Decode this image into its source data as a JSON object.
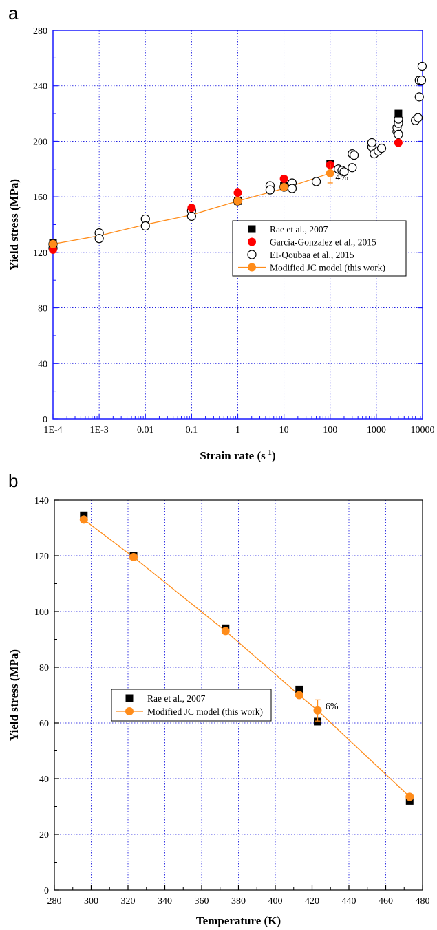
{
  "chart_data": [
    {
      "panel_label": "a",
      "type": "scatter",
      "xlabel": "Strain rate (s",
      "xlabel_sup": "-1",
      "xlabel_end": ")",
      "ylabel": "Yield stress (MPa)",
      "xscale": "log",
      "xlim": [
        0.0001,
        10000
      ],
      "ylim": [
        0,
        280
      ],
      "xticks": [
        {
          "v": 0.0001,
          "label": "1E-4"
        },
        {
          "v": 0.001,
          "label": "1E-3"
        },
        {
          "v": 0.01,
          "label": "0.01"
        },
        {
          "v": 0.1,
          "label": "0.1"
        },
        {
          "v": 1,
          "label": "1"
        },
        {
          "v": 10,
          "label": "10"
        },
        {
          "v": 100,
          "label": "100"
        },
        {
          "v": 1000,
          "label": "1000"
        },
        {
          "v": 10000,
          "label": "10000"
        }
      ],
      "yticks": [
        {
          "v": 0,
          "label": "0"
        },
        {
          "v": 40,
          "label": "40"
        },
        {
          "v": 80,
          "label": "80"
        },
        {
          "v": 120,
          "label": "120"
        },
        {
          "v": 160,
          "label": "160"
        },
        {
          "v": 200,
          "label": "200"
        },
        {
          "v": 240,
          "label": "240"
        },
        {
          "v": 280,
          "label": "280"
        }
      ],
      "grid": true,
      "legend_position": "center-right",
      "series": [
        {
          "name": "Rae et al., 2007",
          "marker": "square",
          "color": "#000000",
          "points": [
            [
              0.0001,
              127
            ],
            [
              1,
              157
            ],
            [
              10,
              168
            ],
            [
              100,
              184
            ],
            [
              3000,
              220
            ]
          ]
        },
        {
          "name": "Garcia-Gonzalez et al., 2015",
          "marker": "circle",
          "color": "#ff0000",
          "points": [
            [
              0.0001,
              122
            ],
            [
              0.1,
              152
            ],
            [
              1,
              163
            ],
            [
              10,
              173
            ],
            [
              100,
              183
            ],
            [
              3000,
              199
            ]
          ]
        },
        {
          "name": "EI-Qoubaa et al., 2015",
          "marker": "open-circle",
          "color": "#000000",
          "points": [
            [
              0.0001,
              126
            ],
            [
              0.0001,
              123
            ],
            [
              0.001,
              134
            ],
            [
              0.001,
              130
            ],
            [
              0.01,
              144
            ],
            [
              0.01,
              139
            ],
            [
              0.1,
              150
            ],
            [
              0.1,
              146
            ],
            [
              1,
              157
            ],
            [
              5,
              168
            ],
            [
              5,
              165
            ],
            [
              10,
              167
            ],
            [
              15,
              170
            ],
            [
              15,
              166
            ],
            [
              50,
              171
            ],
            [
              150,
              180
            ],
            [
              180,
              179
            ],
            [
              200,
              178
            ],
            [
              300,
              181
            ],
            [
              300,
              191
            ],
            [
              330,
              190
            ],
            [
              800,
              196
            ],
            [
              800,
              199
            ],
            [
              900,
              191
            ],
            [
              1100,
              193
            ],
            [
              1300,
              195
            ],
            [
              2800,
              207
            ],
            [
              2800,
              210
            ],
            [
              3000,
              213
            ],
            [
              3000,
              216
            ],
            [
              3000,
              205
            ],
            [
              7000,
              215
            ],
            [
              8000,
              217
            ],
            [
              8500,
              244
            ],
            [
              8500,
              232
            ],
            [
              9500,
              244
            ],
            [
              9800,
              254
            ]
          ]
        },
        {
          "name": "Modified JC model (this work)",
          "marker": "circle-line",
          "color": "#ff8c1a",
          "points": [
            [
              0.0001,
              126
            ],
            [
              1,
              157
            ],
            [
              10,
              167
            ],
            [
              100,
              177
            ]
          ],
          "line": [
            [
              0.0001,
              126
            ],
            [
              0.001,
              132
            ],
            [
              0.01,
              140
            ],
            [
              0.1,
              147
            ],
            [
              1,
              157
            ],
            [
              10,
              166
            ],
            [
              100,
              177
            ]
          ],
          "error_bar": {
            "x": 100,
            "y": 177,
            "err": 7
          }
        }
      ],
      "annotation": {
        "text": "4%",
        "x": 130,
        "y": 172
      }
    },
    {
      "panel_label": "b",
      "type": "scatter",
      "xlabel": "Temperature (K)",
      "ylabel": "Yield stress (MPa)",
      "xlim": [
        280,
        480
      ],
      "ylim": [
        0,
        140
      ],
      "xticks": [
        280,
        300,
        320,
        340,
        360,
        380,
        400,
        420,
        440,
        460,
        480
      ],
      "yticks": [
        0,
        20,
        40,
        60,
        80,
        100,
        120,
        140
      ],
      "grid": true,
      "legend_position": "center-left",
      "series": [
        {
          "name": "Rae et al., 2007",
          "marker": "square",
          "color": "#000000",
          "points": [
            [
              296,
              134.5
            ],
            [
              323,
              120
            ],
            [
              373,
              94
            ],
            [
              413,
              72
            ],
            [
              423,
              60.5
            ],
            [
              473,
              32
            ]
          ]
        },
        {
          "name": "Modified JC model (this work)",
          "marker": "circle-line",
          "color": "#ff8c1a",
          "points": [
            [
              296,
              133
            ],
            [
              323,
              119.5
            ],
            [
              373,
              93
            ],
            [
              413,
              70
            ],
            [
              423,
              64.5
            ],
            [
              473,
              33.5
            ]
          ],
          "error_bar": {
            "x": 423,
            "y": 64.5,
            "err": 3.8
          }
        }
      ],
      "annotation": {
        "text": "6%",
        "x": 425,
        "y": 65
      }
    }
  ]
}
